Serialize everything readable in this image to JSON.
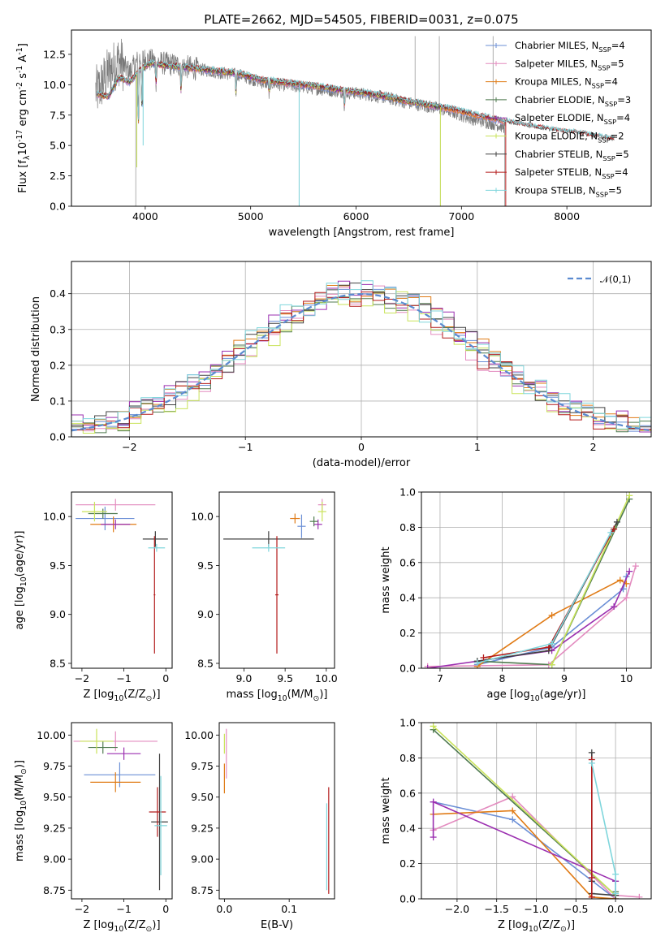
{
  "palette": {
    "Chabrier MILES": "#6b8fd6",
    "Salpeter MILES": "#e38bbf",
    "Kroupa MILES": "#e07b16",
    "Chabrier ELODIE": "#4f7a4f",
    "Salpeter ELODIE": "#9b2fb0",
    "Kroupa ELODIE": "#c9e35a",
    "Chabrier STELIB": "#404040",
    "Salpeter STELIB": "#b31b1b",
    "Kroupa STELIB": "#7fd6dc"
  },
  "chart_data": [
    {
      "id": "spectrum",
      "type": "line",
      "title": "PLATE=2662, MJD=54505, FIBERID=0031, z=0.075",
      "xlabel": "wavelength [Angstrom, rest frame]",
      "ylabel": "Flux [f$_\\lambda$10$^{-17}$ erg cm$^{-2}$ s$^{-1}$ A$^{-1}$]",
      "xlim": [
        3300,
        8800
      ],
      "ylim": [
        0,
        14.5
      ],
      "xticks": [
        "4000",
        "5000",
        "6000",
        "7000",
        "8000"
      ],
      "yticks": [
        "0.0",
        "2.5",
        "5.0",
        "7.5",
        "10.0",
        "12.5"
      ],
      "legend_position": "upper-right",
      "legend": [
        "Chabrier MILES, N$_{SSP}$=4",
        "Salpeter MILES, N$_{SSP}$=5",
        "Kroupa MILES, N$_{SSP}$=4",
        "Chabrier ELODIE, N$_{SSP}$=3",
        "Salpeter ELODIE, N$_{SSP}$=4",
        "Kroupa ELODIE, N$_{SSP}$=2",
        "Chabrier STELIB, N$_{SSP}$=5",
        "Salpeter STELIB, N$_{SSP}$=4",
        "Kroupa STELIB, N$_{SSP}$=5"
      ],
      "data_continuum": {
        "wavelength": [
          3550,
          3650,
          3750,
          3850,
          3950,
          4050,
          4150,
          4300,
          4500,
          4700,
          4900,
          5100,
          5300,
          5500,
          5700,
          5900,
          6100,
          6300,
          6500,
          6700,
          6900,
          7100,
          7300,
          7420
        ],
        "flux": [
          9.5,
          11.0,
          12.0,
          11.0,
          12.2,
          12.0,
          11.8,
          11.6,
          11.3,
          11.0,
          10.8,
          10.2,
          10.0,
          9.8,
          9.6,
          9.4,
          9.2,
          8.9,
          8.5,
          8.2,
          7.8,
          7.2,
          6.8,
          6.5
        ]
      },
      "model_continuum": {
        "wavelength": [
          3550,
          3650,
          3750,
          3850,
          3950,
          4050,
          4150,
          4300,
          4500,
          4700,
          4900,
          5100,
          5300,
          5500,
          5700,
          5900,
          6100,
          6300,
          6500,
          6700,
          6900,
          7100,
          7300,
          7500,
          7700,
          7900,
          8100,
          8300,
          8450
        ],
        "flux": [
          9.2,
          9.0,
          10.6,
          10.2,
          11.2,
          11.8,
          11.6,
          11.5,
          11.3,
          11.1,
          10.9,
          10.4,
          10.2,
          10.0,
          9.8,
          9.5,
          9.3,
          9.0,
          8.6,
          8.3,
          8.0,
          7.6,
          7.2,
          6.8,
          6.5,
          6.2,
          6.0,
          5.7,
          5.5
        ]
      },
      "absorption_features": [
        {
          "wavelength": 3934,
          "depth": 5.3
        },
        {
          "wavelength": 3969,
          "depth": 4.5
        },
        {
          "wavelength": 4102,
          "depth": 2.0
        },
        {
          "wavelength": 4340,
          "depth": 2.5
        },
        {
          "wavelength": 4861,
          "depth": 1.8
        },
        {
          "wavelength": 5175,
          "depth": 1.2
        },
        {
          "wavelength": 5890,
          "depth": 1.5
        }
      ],
      "spikes": [
        {
          "wavelength": 3910,
          "flux": 0.0
        },
        {
          "wavelength": 5460,
          "flux": 0.0
        },
        {
          "wavelength": 6560,
          "flux": 14.0
        },
        {
          "wavelength": 6800,
          "flux": 0.0
        },
        {
          "wavelength": 6790,
          "flux": 14.0
        },
        {
          "wavelength": 7300,
          "flux": 14.0
        },
        {
          "wavelength": 7410,
          "flux": 0.0
        }
      ]
    },
    {
      "id": "residuals",
      "type": "line",
      "xlabel": "(data-model)/error",
      "ylabel": "Normed distribution",
      "xlim": [
        -2.5,
        2.5
      ],
      "ylim": [
        0,
        0.49
      ],
      "xticks": [
        "−2",
        "−1",
        "0",
        "1",
        "2"
      ],
      "yticks": [
        "0.0",
        "0.1",
        "0.2",
        "0.3",
        "0.4"
      ],
      "grid": true,
      "legend_position": "upper-right",
      "legend": [
        "$\\mathcal{N}(0,1)$"
      ],
      "normal_mean": 0,
      "normal_sigma": 1,
      "bin_width": 0.1,
      "bin_start": -2.5,
      "histogram_seed_offsets": [
        0.012,
        -0.018,
        0.02,
        -0.01,
        0.025,
        -0.022,
        0.015,
        -0.008,
        0.03
      ]
    },
    {
      "id": "age-vs-Z",
      "type": "scatter",
      "xlabel": "Z [log$_{10}$($Z/Z_\\odot$)]",
      "ylabel": "age  [log$_{10}$($age/yr$)]",
      "xlim": [
        -2.25,
        0.15
      ],
      "ylim": [
        8.45,
        10.25
      ],
      "xticks": [
        "−2",
        "−1",
        "0"
      ],
      "yticks": [
        "8.5",
        "9.0",
        "9.5",
        "10.0"
      ],
      "points": [
        {
          "model": "Chabrier MILES",
          "x": -1.45,
          "y": 9.98,
          "xerr": 0.7,
          "yerr": 0.12
        },
        {
          "model": "Salpeter MILES",
          "x": -1.2,
          "y": 10.12,
          "xerr": 0.95,
          "yerr": 0.06
        },
        {
          "model": "Kroupa MILES",
          "x": -1.25,
          "y": 9.92,
          "xerr": 0.55,
          "yerr": 0.08
        },
        {
          "model": "Chabrier ELODIE",
          "x": -1.5,
          "y": 10.03,
          "xerr": 0.35,
          "yerr": 0.05
        },
        {
          "model": "Salpeter ELODIE",
          "x": -1.2,
          "y": 9.92,
          "xerr": 0.35,
          "yerr": 0.05
        },
        {
          "model": "Kroupa ELODIE",
          "x": -1.7,
          "y": 10.05,
          "xerr": 0.3,
          "yerr": 0.1
        },
        {
          "model": "Chabrier STELIB",
          "x": -0.25,
          "y": 9.77,
          "xerr": 0.3,
          "yerr": 0.08
        },
        {
          "model": "Salpeter STELIB",
          "x": -0.27,
          "y": 9.2,
          "xerr": 0.02,
          "yerr": 0.6
        },
        {
          "model": "Kroupa STELIB",
          "x": -0.22,
          "y": 9.68,
          "xerr": 0.2,
          "yerr": 0.04
        }
      ]
    },
    {
      "id": "age-vs-mass",
      "type": "scatter",
      "xlabel": "mass [log$_{10}$($M/M_\\odot$)]",
      "ylabel": "",
      "xlim": [
        8.7,
        10.1
      ],
      "ylim": [
        8.45,
        10.25
      ],
      "xticks": [
        "9.0",
        "9.5",
        "10.0"
      ],
      "yticks": [
        "8.5",
        "9.0",
        "9.5",
        "10.0"
      ],
      "points": [
        {
          "model": "Chabrier MILES",
          "x": 9.7,
          "y": 9.9,
          "xerr": 0.05,
          "yerr": 0.12
        },
        {
          "model": "Salpeter MILES",
          "x": 9.95,
          "y": 10.12,
          "xerr": 0.05,
          "yerr": 0.06
        },
        {
          "model": "Kroupa MILES",
          "x": 9.62,
          "y": 9.98,
          "xerr": 0.06,
          "yerr": 0.05
        },
        {
          "model": "Chabrier ELODIE",
          "x": 9.85,
          "y": 9.95,
          "xerr": 0.05,
          "yerr": 0.05
        },
        {
          "model": "Salpeter ELODIE",
          "x": 9.9,
          "y": 9.92,
          "xerr": 0.05,
          "yerr": 0.05
        },
        {
          "model": "Kroupa ELODIE",
          "x": 9.95,
          "y": 10.05,
          "xerr": 0.05,
          "yerr": 0.1
        },
        {
          "model": "Chabrier STELIB",
          "x": 9.3,
          "y": 9.77,
          "xerr": 0.55,
          "yerr": 0.08
        },
        {
          "model": "Salpeter STELIB",
          "x": 9.4,
          "y": 9.2,
          "xerr": 0.02,
          "yerr": 0.6
        },
        {
          "model": "Kroupa STELIB",
          "x": 9.3,
          "y": 9.68,
          "xerr": 0.2,
          "yerr": 0.04
        }
      ]
    },
    {
      "id": "mass-weight-vs-age",
      "type": "line",
      "xlabel": "age  [log$_{10}$($age/yr$)]",
      "ylabel": "mass weight",
      "xlim": [
        6.7,
        10.4
      ],
      "ylim": [
        0,
        1.0
      ],
      "xticks": [
        "7",
        "8",
        "9",
        "10"
      ],
      "yticks": [
        "0.0",
        "0.2",
        "0.4",
        "0.6",
        "0.8",
        "1.0"
      ],
      "grid": true,
      "series": [
        {
          "model": "Chabrier MILES",
          "x": [
            7.6,
            8.8,
            9.95,
            10.0
          ],
          "y": [
            0.02,
            0.12,
            0.45,
            0.52
          ]
        },
        {
          "model": "Salpeter MILES",
          "x": [
            6.8,
            8.75,
            10.0,
            10.15
          ],
          "y": [
            0.01,
            0.02,
            0.4,
            0.58
          ]
        },
        {
          "model": "Kroupa MILES",
          "x": [
            7.6,
            8.8,
            9.9,
            10.0
          ],
          "y": [
            0.01,
            0.3,
            0.5,
            0.48
          ]
        },
        {
          "model": "Chabrier ELODIE",
          "x": [
            7.6,
            8.8,
            10.05
          ],
          "y": [
            0.04,
            0.02,
            0.96
          ]
        },
        {
          "model": "Salpeter ELODIE",
          "x": [
            6.8,
            8.8,
            9.8,
            10.05
          ],
          "y": [
            0.0,
            0.1,
            0.35,
            0.55
          ]
        },
        {
          "model": "Kroupa ELODIE",
          "x": [
            8.8,
            10.05
          ],
          "y": [
            0.02,
            0.98
          ]
        },
        {
          "model": "Chabrier STELIB",
          "x": [
            7.6,
            8.75,
            9.85
          ],
          "y": [
            0.04,
            0.1,
            0.83
          ]
        },
        {
          "model": "Salpeter STELIB",
          "x": [
            7.7,
            8.75,
            9.8
          ],
          "y": [
            0.06,
            0.12,
            0.79
          ]
        },
        {
          "model": "Kroupa STELIB",
          "x": [
            7.6,
            8.8,
            9.75
          ],
          "y": [
            0.03,
            0.14,
            0.77
          ]
        }
      ]
    },
    {
      "id": "mass-vs-Z",
      "type": "scatter",
      "xlabel": "Z [log$_{10}$($Z/Z_\\odot$)]",
      "ylabel": "mass [log$_{10}$($M/M_\\odot$)]",
      "xlim": [
        -2.25,
        0.15
      ],
      "ylim": [
        8.68,
        10.1
      ],
      "xticks": [
        "−2",
        "−1",
        "0"
      ],
      "yticks": [
        "8.75",
        "9.00",
        "9.25",
        "9.50",
        "9.75",
        "10.00"
      ],
      "points": [
        {
          "model": "Chabrier MILES",
          "x": -1.1,
          "y": 9.68,
          "xerr": 0.85,
          "yerr": 0.1
        },
        {
          "model": "Salpeter MILES",
          "x": -1.2,
          "y": 9.95,
          "xerr": 1.0,
          "yerr": 0.08
        },
        {
          "model": "Kroupa MILES",
          "x": -1.2,
          "y": 9.62,
          "xerr": 0.6,
          "yerr": 0.08
        },
        {
          "model": "Chabrier ELODIE",
          "x": -1.5,
          "y": 9.9,
          "xerr": 0.35,
          "yerr": 0.05
        },
        {
          "model": "Salpeter ELODIE",
          "x": -1.0,
          "y": 9.85,
          "xerr": 0.4,
          "yerr": 0.05
        },
        {
          "model": "Kroupa ELODIE",
          "x": -1.65,
          "y": 9.95,
          "xerr": 0.4,
          "yerr": 0.1
        },
        {
          "model": "Chabrier STELIB",
          "x": -0.15,
          "y": 9.3,
          "xerr": 0.2,
          "yerr": 0.55
        },
        {
          "model": "Salpeter STELIB",
          "x": -0.2,
          "y": 9.38,
          "xerr": 0.2,
          "yerr": 0.2
        },
        {
          "model": "Kroupa STELIB",
          "x": -0.12,
          "y": 9.27,
          "xerr": 0.15,
          "yerr": 0.4
        }
      ]
    },
    {
      "id": "mass-vs-EBV",
      "type": "scatter",
      "xlabel": "E(B-V)",
      "ylabel": "",
      "xlim": [
        -0.008,
        0.17
      ],
      "ylim": [
        8.68,
        10.1
      ],
      "xticks": [
        "0.0",
        "0.1"
      ],
      "yticks": [
        "8.75",
        "9.00",
        "9.25",
        "9.50",
        "9.75",
        "10.00"
      ],
      "points": [
        {
          "model": "Kroupa ELODIE",
          "x": 0.0,
          "y": 9.93,
          "xerr": 0,
          "yerr": 0.08
        },
        {
          "model": "Salpeter MILES",
          "x": 0.003,
          "y": 9.85,
          "xerr": 0,
          "yerr": 0.2
        },
        {
          "model": "Kroupa MILES",
          "x": 0.0,
          "y": 9.65,
          "xerr": 0,
          "yerr": 0.12
        },
        {
          "model": "Kroupa STELIB",
          "x": 0.158,
          "y": 9.1,
          "xerr": 0,
          "yerr": 0.35
        },
        {
          "model": "Salpeter STELIB",
          "x": 0.161,
          "y": 9.15,
          "xerr": 0,
          "yerr": 0.43
        }
      ]
    },
    {
      "id": "mass-weight-vs-Z",
      "type": "line",
      "xlabel": "Z [log$_{10}$($Z/Z_\\odot$)]",
      "ylabel": "mass weight",
      "xlim": [
        -2.45,
        0.45
      ],
      "ylim": [
        0,
        1.0
      ],
      "xticks": [
        "−2.0",
        "−1.5",
        "−1.0",
        "−0.5",
        "0.0"
      ],
      "yticks": [
        "0.0",
        "0.2",
        "0.4",
        "0.6",
        "0.8",
        "1.0"
      ],
      "grid": true,
      "series": [
        {
          "model": "Chabrier MILES",
          "x": [
            -2.3,
            -1.3,
            0.0,
            0.0
          ],
          "y": [
            0.55,
            0.45,
            0.0,
            0.1
          ]
        },
        {
          "model": "Salpeter MILES",
          "x": [
            -2.3,
            -1.3,
            0.0,
            0.0,
            0.3
          ],
          "y": [
            0.39,
            0.58,
            0.0,
            0.02,
            0.01
          ]
        },
        {
          "model": "Kroupa MILES",
          "x": [
            -2.3,
            -1.3,
            -0.3,
            0.0
          ],
          "y": [
            0.48,
            0.5,
            0.01,
            0.0
          ]
        },
        {
          "model": "Chabrier ELODIE",
          "x": [
            -2.3,
            0.0,
            0.0
          ],
          "y": [
            0.96,
            0.02,
            0.04
          ]
        },
        {
          "model": "Salpeter ELODIE",
          "x": [
            -2.3,
            -2.3,
            0.0
          ],
          "y": [
            0.35,
            0.55,
            0.1
          ]
        },
        {
          "model": "Kroupa ELODIE",
          "x": [
            -2.3,
            0.0
          ],
          "y": [
            0.98,
            0.02
          ]
        },
        {
          "model": "Chabrier STELIB",
          "x": [
            -0.3,
            -0.3,
            -0.3,
            0.0
          ],
          "y": [
            0.1,
            0.83,
            0.03,
            0.02
          ]
        },
        {
          "model": "Salpeter STELIB",
          "x": [
            -0.3,
            -0.3,
            -0.3
          ],
          "y": [
            0.12,
            0.79,
            0.01
          ]
        },
        {
          "model": "Kroupa STELIB",
          "x": [
            -0.3,
            0.0,
            0.0
          ],
          "y": [
            0.77,
            0.14,
            0.03
          ]
        }
      ]
    }
  ]
}
